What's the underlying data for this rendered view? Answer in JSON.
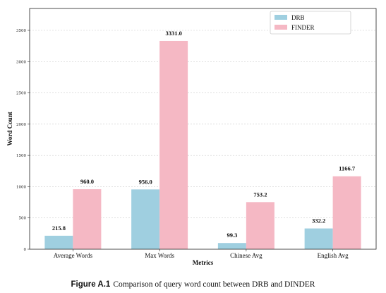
{
  "chart_data": {
    "type": "bar",
    "categories": [
      "Average Words",
      "Max Words",
      "Chinese Avg",
      "English Avg"
    ],
    "series": [
      {
        "name": "DRB",
        "values": [
          215.8,
          956.0,
          99.3,
          332.2
        ],
        "labels": [
          "215.8",
          "956.0",
          "99.3",
          "332.2"
        ],
        "color": "#9fcfe0"
      },
      {
        "name": "FINDER",
        "values": [
          960.0,
          3331.0,
          753.2,
          1166.7
        ],
        "labels": [
          "960.0",
          "3331.0",
          "753.2",
          "1166.7"
        ],
        "color": "#f5b8c4"
      }
    ],
    "title": "",
    "xlabel": "Metrics",
    "ylabel": "Word Count",
    "ylim": [
      0,
      3850
    ],
    "yticks": [
      0,
      500,
      1000,
      1500,
      2000,
      2500,
      3000,
      3500
    ],
    "grid": true,
    "legend_position": "top-right"
  },
  "caption": {
    "label": "Figure A.1",
    "text": "Comparison of query word count between DRB and DINDER"
  }
}
